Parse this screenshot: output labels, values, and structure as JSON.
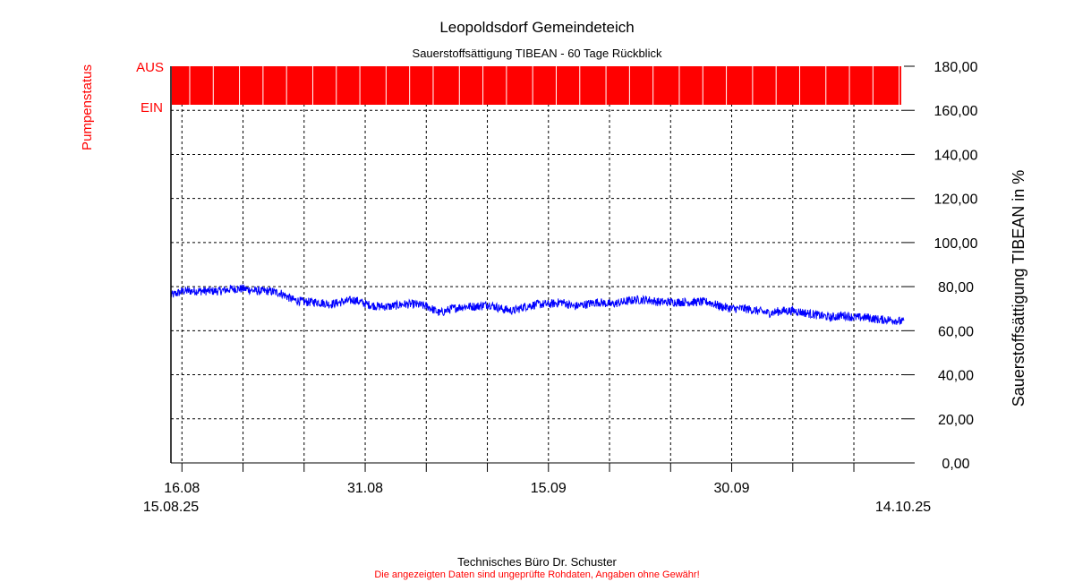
{
  "chart_data": {
    "type": "line",
    "title": "Leopoldsdorf Gemeindeteich",
    "subtitle": "Sauerstoffsättigung  TIBEAN - 60 Tage Rückblick",
    "ylabel": "Sauerstoffsättigung  TIBEAN in %",
    "left_label": "Pumpenstatus",
    "pump_labels": {
      "off": "AUS",
      "on": "EIN"
    },
    "pump_status": "AUS",
    "ylim": [
      0,
      180
    ],
    "yticks": [
      "0,00",
      "20,00",
      "40,00",
      "60,00",
      "80,00",
      "100,00",
      "120,00",
      "140,00",
      "160,00",
      "180,00"
    ],
    "xlim_days": [
      0,
      60
    ],
    "xticks": [
      {
        "day": 0.9,
        "label": "16.08"
      },
      {
        "day": 15.9,
        "label": "31.08"
      },
      {
        "day": 30.9,
        "label": "15.09"
      },
      {
        "day": 45.9,
        "label": "30.09"
      }
    ],
    "start_label": "15.08.25",
    "end_label": "14.10.25",
    "grid": true,
    "series": [
      {
        "name": "Sauerstoffsättigung TIBEAN",
        "color": "#0000ff",
        "x_unit": "days since start",
        "values": [
          76,
          78,
          78,
          78,
          78,
          79,
          79,
          78,
          78,
          77,
          74,
          73,
          73,
          72,
          73,
          74,
          72,
          71,
          71,
          72,
          72,
          71,
          68,
          70,
          71,
          71,
          72,
          70,
          69,
          71,
          72,
          72,
          73,
          71,
          72,
          73,
          72,
          73,
          74,
          74,
          73,
          73,
          73,
          73,
          73,
          71,
          70,
          70,
          69,
          68,
          69,
          69,
          68,
          67,
          66,
          67,
          66,
          66,
          65,
          65,
          64
        ]
      }
    ],
    "pump_color": "#ff0000"
  },
  "footer": {
    "company": "Technisches Büro Dr. Schuster",
    "disclaimer": "Die angezeigten Daten sind ungeprüfte Rohdaten, Angaben ohne Gewähr!"
  }
}
